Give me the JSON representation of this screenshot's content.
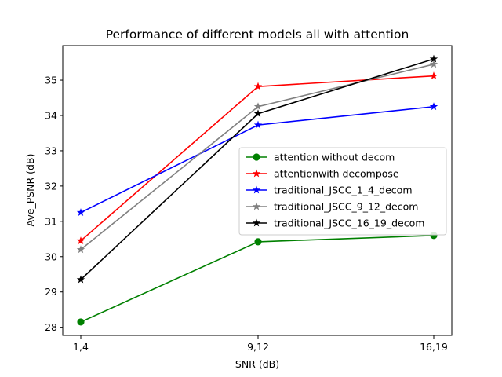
{
  "chart_data": {
    "type": "line",
    "title": "Performance of different models all with attention",
    "xlabel": "SNR (dB)",
    "ylabel": "Ave_PSNR (dB)",
    "categories": [
      "1,4",
      "9,12",
      "16,19"
    ],
    "ylim": [
      27.77,
      35.98
    ],
    "yticks": [
      28,
      29,
      30,
      31,
      32,
      33,
      34,
      35
    ],
    "yticks_labels": [
      "28",
      "29",
      "30",
      "31",
      "32",
      "33",
      "34",
      "35"
    ],
    "grid": false,
    "legend_position": "center-right",
    "series": [
      {
        "name": "attention without decom",
        "color": "#008000",
        "marker": "circle",
        "values": [
          28.15,
          30.42,
          30.6
        ]
      },
      {
        "name": "attentionwith decompose",
        "color": "#ff0000",
        "marker": "star",
        "values": [
          30.45,
          34.82,
          35.12
        ]
      },
      {
        "name": "traditional_JSCC_1_4_decom",
        "color": "#0000ff",
        "marker": "star",
        "values": [
          31.25,
          33.73,
          34.25
        ]
      },
      {
        "name": "traditional_JSCC_9_12_decom",
        "color": "#808080",
        "marker": "star",
        "values": [
          30.2,
          34.25,
          35.45
        ]
      },
      {
        "name": "traditional_JSCC_16_19_decom",
        "color": "#000000",
        "marker": "star",
        "values": [
          29.35,
          34.05,
          35.6
        ]
      }
    ]
  }
}
